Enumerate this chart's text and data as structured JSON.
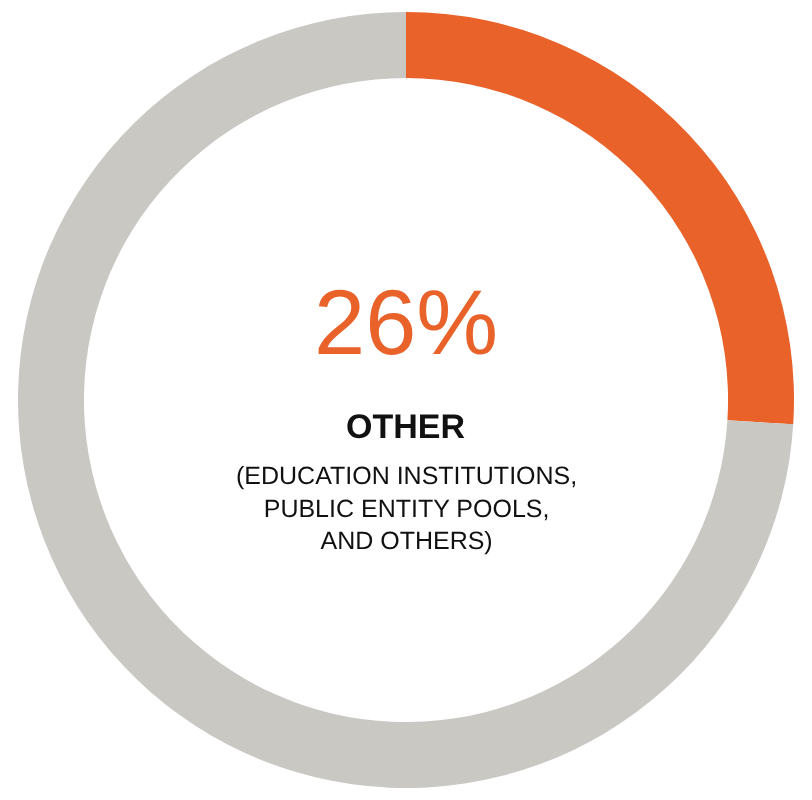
{
  "chart_data": {
    "type": "donut",
    "title": "OTHER",
    "subtitle": "(EDUCATION INSTITUTIONS,\nPUBLIC ENTITY POOLS,\nAND OTHERS)",
    "categories": [
      null,
      null
    ],
    "values": [
      26,
      74
    ],
    "colors": [
      "#e8622a",
      "#c9c8c3"
    ],
    "value_labels": [
      "26%",
      null
    ],
    "legend": false
  }
}
